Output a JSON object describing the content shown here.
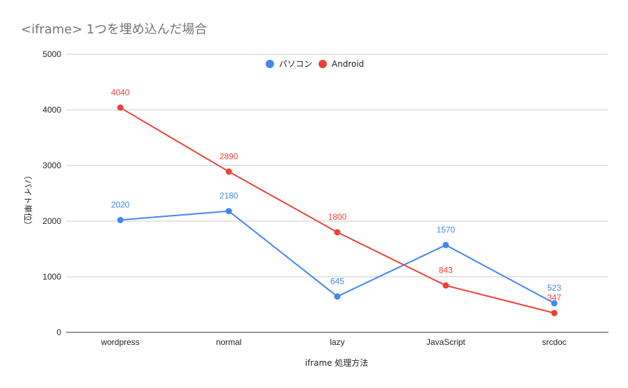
{
  "chart_data": {
    "type": "line",
    "title": "<iframe> 1つを埋め込んだ場合",
    "xlabel": "iframe 処理方法",
    "ylabel": "（バイト単位）",
    "categories": [
      "wordpress",
      "normal",
      "lazy",
      "JavaScript",
      "srcdoc"
    ],
    "ylim": [
      0,
      5000
    ],
    "yticks": [
      0,
      1000,
      2000,
      3000,
      4000,
      5000
    ],
    "grid": true,
    "legend_position": "top",
    "series": [
      {
        "name": "パソコン",
        "color": "#4285f4",
        "values": [
          2020,
          2180,
          645,
          1570,
          523
        ]
      },
      {
        "name": "Android",
        "color": "#ea4335",
        "values": [
          4040,
          2890,
          1800,
          843,
          347
        ]
      }
    ]
  }
}
